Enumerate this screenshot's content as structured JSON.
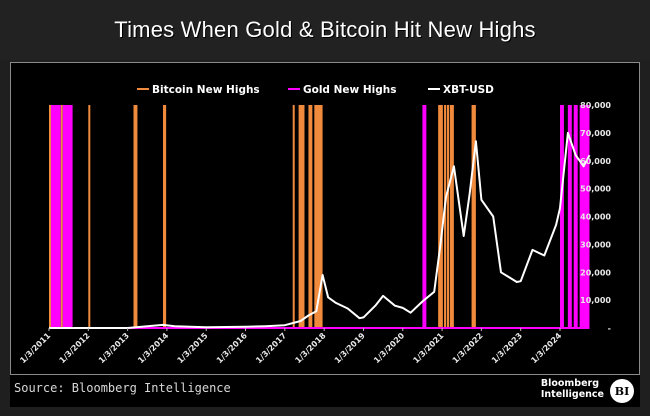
{
  "title": "Times When Gold & Bitcoin Hit New Highs",
  "footer": {
    "source": "Source: Bloomberg Intelligence",
    "brand_line1": "Bloomberg",
    "brand_line2": "Intelligence",
    "logo": "BI"
  },
  "colors": {
    "bitcoin_highs": "#f08a3c",
    "gold_highs": "#ff00ff",
    "xbt_usd": "#ffffff",
    "background": "#000000"
  },
  "chart_data": {
    "type": "line",
    "title": "Times When Gold & Bitcoin Hit New Highs",
    "xlabel": "",
    "ylabel": "",
    "y_axis_position": "right",
    "ylim": [
      0,
      80000
    ],
    "yticks": [
      "-",
      "10,000",
      "20,000",
      "30,000",
      "40,000",
      "50,000",
      "60,000",
      "70,000",
      "80,000"
    ],
    "xticks": [
      "1/3/2011",
      "1/3/2012",
      "1/3/2013",
      "1/3/2014",
      "1/3/2015",
      "1/3/2016",
      "1/3/2017",
      "1/3/2018",
      "1/3/2019",
      "1/3/2020",
      "1/3/2021",
      "1/3/2022",
      "1/3/2023",
      "1/3/2024"
    ],
    "grid": false,
    "legend": {
      "position": "top",
      "entries": [
        "Bitcoin New Highs",
        "Gold New Highs",
        "XBT-USD"
      ]
    },
    "series": [
      {
        "name": "XBT-USD",
        "type": "line",
        "x": [
          2011.0,
          2012.0,
          2013.0,
          2013.9,
          2014.2,
          2015.0,
          2016.0,
          2016.5,
          2017.0,
          2017.4,
          2017.6,
          2017.8,
          2017.96,
          2018.1,
          2018.3,
          2018.6,
          2018.9,
          2019.0,
          2019.3,
          2019.5,
          2019.8,
          2020.0,
          2020.2,
          2020.5,
          2020.8,
          2020.95,
          2021.1,
          2021.3,
          2021.55,
          2021.7,
          2021.86,
          2022.0,
          2022.3,
          2022.5,
          2022.9,
          2023.0,
          2023.3,
          2023.6,
          2023.9,
          2024.0,
          2024.2,
          2024.4,
          2024.6,
          2024.75
        ],
        "y": [
          0,
          5,
          13,
          1100,
          600,
          300,
          430,
          650,
          1000,
          2500,
          4500,
          6000,
          19000,
          11000,
          9000,
          7000,
          3500,
          3800,
          8000,
          11500,
          8000,
          7200,
          5500,
          9500,
          13000,
          29000,
          47000,
          58000,
          33000,
          48000,
          67000,
          46000,
          40000,
          20000,
          16500,
          16800,
          28000,
          26000,
          37000,
          43000,
          70000,
          62000,
          58000,
          62000
        ]
      },
      {
        "name": "Bitcoin New Highs",
        "type": "band",
        "ranges": [
          [
            2011.0,
            2011.05
          ],
          [
            2011.3,
            2011.35
          ],
          [
            2012.0,
            2012.05
          ],
          [
            2013.15,
            2013.25
          ],
          [
            2013.9,
            2013.98
          ],
          [
            2017.2,
            2017.25
          ],
          [
            2017.35,
            2017.5
          ],
          [
            2017.6,
            2017.7
          ],
          [
            2017.75,
            2017.96
          ],
          [
            2020.9,
            2021.02
          ],
          [
            2021.05,
            2021.1
          ],
          [
            2021.12,
            2021.18
          ],
          [
            2021.2,
            2021.3
          ],
          [
            2021.75,
            2021.86
          ]
        ]
      },
      {
        "name": "Gold New Highs",
        "type": "band",
        "ranges": [
          [
            2011.05,
            2011.3
          ],
          [
            2011.35,
            2011.6
          ],
          [
            2020.5,
            2020.6
          ],
          [
            2024.0,
            2024.1
          ],
          [
            2024.2,
            2024.3
          ],
          [
            2024.35,
            2024.45
          ],
          [
            2024.5,
            2024.75
          ]
        ]
      }
    ]
  }
}
